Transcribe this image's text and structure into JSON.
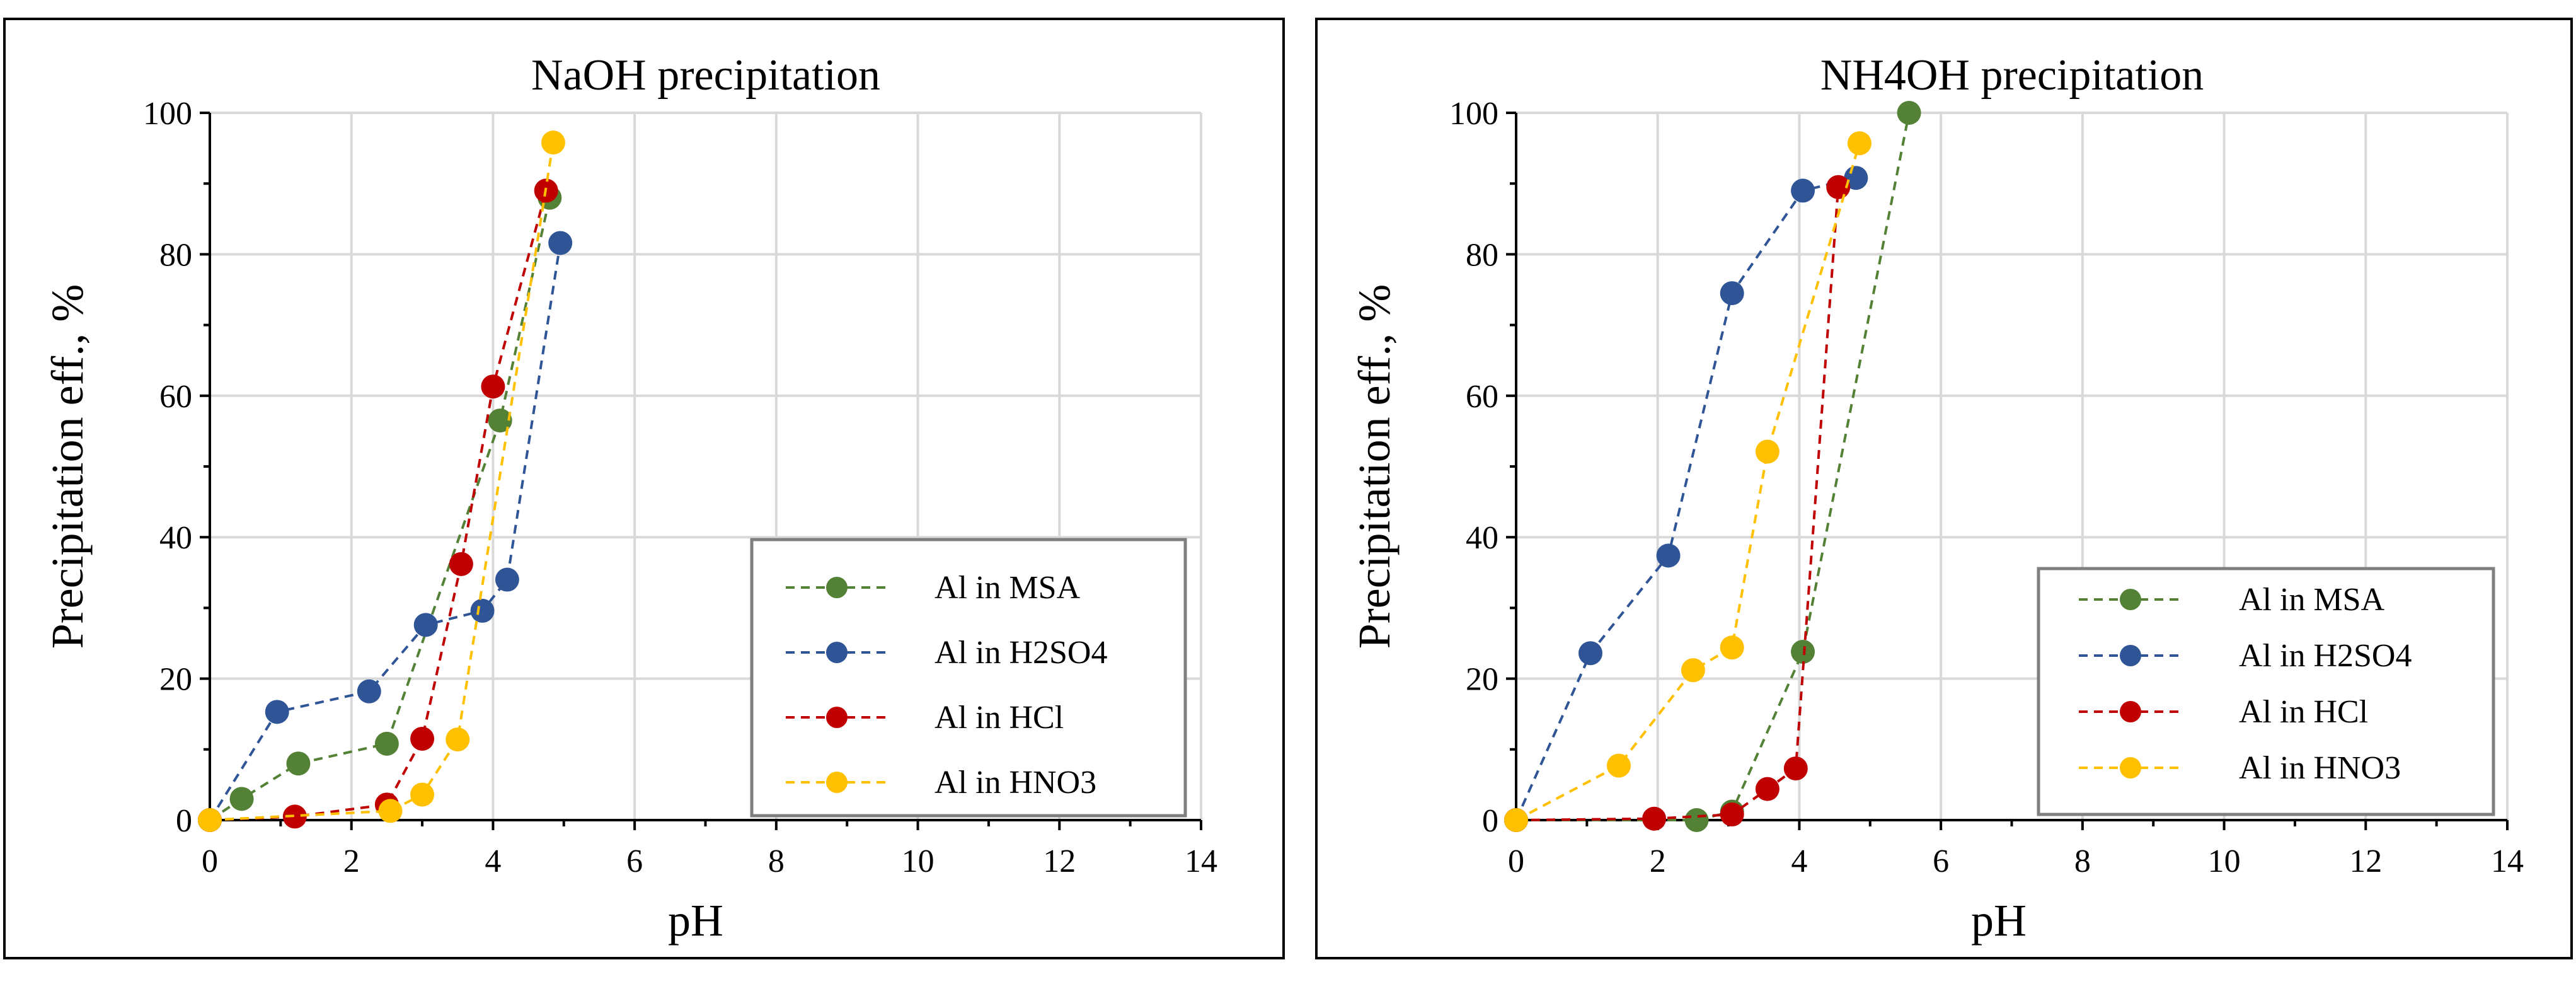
{
  "chart_data": [
    {
      "type": "line",
      "title": "NaOH precipitation",
      "xlabel": "pH",
      "ylabel": "Precipitation eff., %",
      "xlim": [
        0,
        14
      ],
      "ylim": [
        0,
        100
      ],
      "xticks": [
        0,
        2,
        4,
        6,
        8,
        10,
        12,
        14
      ],
      "yticks": [
        0,
        20,
        40,
        60,
        80,
        100
      ],
      "grid": true,
      "legend_position": "bottom-right",
      "series": [
        {
          "name": "Al in MSA",
          "color": "#538135",
          "x": [
            0,
            0.45,
            1.25,
            2.5,
            4.1,
            4.8
          ],
          "y": [
            0,
            3,
            8,
            10.8,
            56.5,
            88
          ]
        },
        {
          "name": "Al in H2SO4",
          "color": "#2F5597",
          "x": [
            0,
            0.95,
            2.25,
            3.05,
            3.85,
            4.2,
            4.95
          ],
          "y": [
            0,
            15.3,
            18.2,
            27.6,
            29.6,
            34,
            81.6
          ]
        },
        {
          "name": "Al in HCl",
          "color": "#C00000",
          "x": [
            0,
            1.2,
            2.5,
            3,
            3.55,
            4,
            4.75
          ],
          "y": [
            0,
            0.5,
            2.2,
            11.5,
            36.2,
            61.3,
            89
          ]
        },
        {
          "name": "Al in HNO3",
          "color": "#FFC000",
          "x": [
            0,
            2.55,
            3,
            3.5,
            4.85
          ],
          "y": [
            0,
            1.3,
            3.6,
            11.4,
            95.8
          ]
        }
      ]
    },
    {
      "type": "line",
      "title": "NH4OH precipitation",
      "xlabel": "pH",
      "ylabel": "Precipitation eff., %",
      "xlim": [
        0,
        14
      ],
      "ylim": [
        0,
        100
      ],
      "xticks": [
        0,
        2,
        4,
        6,
        8,
        10,
        12,
        14
      ],
      "yticks": [
        0,
        20,
        40,
        60,
        80,
        100
      ],
      "grid": true,
      "legend_position": "bottom-right",
      "series": [
        {
          "name": "Al in MSA",
          "color": "#538135",
          "x": [
            0,
            2.55,
            3.05,
            4.05,
            5.55
          ],
          "y": [
            0,
            0,
            1.2,
            23.8,
            100
          ]
        },
        {
          "name": "Al in H2SO4",
          "color": "#2F5597",
          "x": [
            0,
            1.05,
            2.15,
            3.05,
            4.05,
            4.8
          ],
          "y": [
            0,
            23.6,
            37.4,
            74.5,
            89,
            90.8
          ]
        },
        {
          "name": "Al in HCl",
          "color": "#C00000",
          "x": [
            0,
            1.95,
            3.05,
            3.55,
            3.95,
            4.55
          ],
          "y": [
            0,
            0.2,
            0.8,
            4.4,
            7.3,
            89.5
          ]
        },
        {
          "name": "Al in HNO3",
          "color": "#FFC000",
          "x": [
            0,
            1.45,
            2.5,
            3.05,
            3.55,
            4.85
          ],
          "y": [
            0,
            7.7,
            21.2,
            24.4,
            52.1,
            95.7
          ]
        }
      ]
    }
  ]
}
